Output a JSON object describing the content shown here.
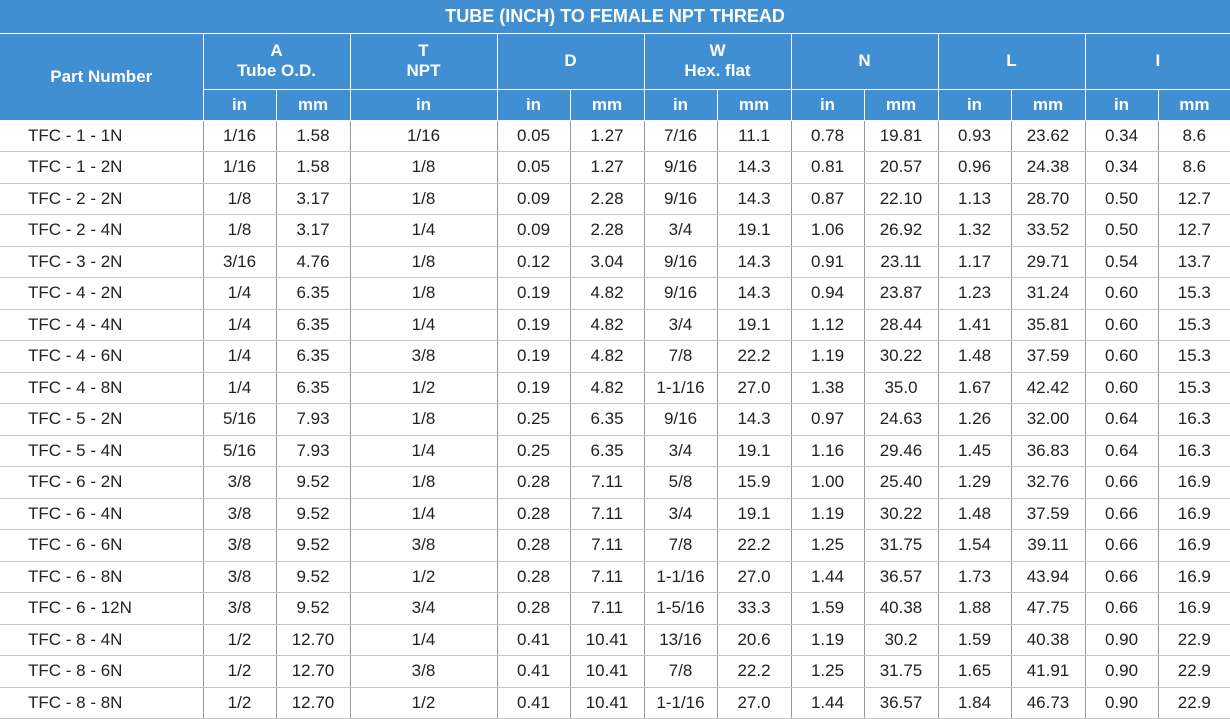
{
  "title": "TUBE (INCH) TO FEMALE NPT THREAD",
  "headers": {
    "part_number": "Part Number",
    "A": {
      "letter": "A",
      "name": "Tube O.D."
    },
    "T": {
      "letter": "T",
      "name": "NPT"
    },
    "D": {
      "letter": "D"
    },
    "W": {
      "letter": "W",
      "name": "Hex. flat"
    },
    "N": {
      "letter": "N"
    },
    "L": {
      "letter": "L"
    },
    "I": {
      "letter": "I"
    }
  },
  "units": {
    "in": "in",
    "mm": "mm"
  },
  "rows": [
    [
      "TFC - 1 - 1N",
      "1/16",
      "1.58",
      "1/16",
      "0.05",
      "1.27",
      "7/16",
      "11.1",
      "0.78",
      "19.81",
      "0.93",
      "23.62",
      "0.34",
      "8.6"
    ],
    [
      "TFC - 1 - 2N",
      "1/16",
      "1.58",
      "1/8",
      "0.05",
      "1.27",
      "9/16",
      "14.3",
      "0.81",
      "20.57",
      "0.96",
      "24.38",
      "0.34",
      "8.6"
    ],
    [
      "TFC - 2 - 2N",
      "1/8",
      "3.17",
      "1/8",
      "0.09",
      "2.28",
      "9/16",
      "14.3",
      "0.87",
      "22.10",
      "1.13",
      "28.70",
      "0.50",
      "12.7"
    ],
    [
      "TFC - 2 - 4N",
      "1/8",
      "3.17",
      "1/4",
      "0.09",
      "2.28",
      "3/4",
      "19.1",
      "1.06",
      "26.92",
      "1.32",
      "33.52",
      "0.50",
      "12.7"
    ],
    [
      "TFC - 3 - 2N",
      "3/16",
      "4.76",
      "1/8",
      "0.12",
      "3.04",
      "9/16",
      "14.3",
      "0.91",
      "23.11",
      "1.17",
      "29.71",
      "0.54",
      "13.7"
    ],
    [
      "TFC - 4 - 2N",
      "1/4",
      "6.35",
      "1/8",
      "0.19",
      "4.82",
      "9/16",
      "14.3",
      "0.94",
      "23.87",
      "1.23",
      "31.24",
      "0.60",
      "15.3"
    ],
    [
      "TFC - 4 - 4N",
      "1/4",
      "6.35",
      "1/4",
      "0.19",
      "4.82",
      "3/4",
      "19.1",
      "1.12",
      "28.44",
      "1.41",
      "35.81",
      "0.60",
      "15.3"
    ],
    [
      "TFC - 4 - 6N",
      "1/4",
      "6.35",
      "3/8",
      "0.19",
      "4.82",
      "7/8",
      "22.2",
      "1.19",
      "30.22",
      "1.48",
      "37.59",
      "0.60",
      "15.3"
    ],
    [
      "TFC - 4 - 8N",
      "1/4",
      "6.35",
      "1/2",
      "0.19",
      "4.82",
      "1-1/16",
      "27.0",
      "1.38",
      "35.0",
      "1.67",
      "42.42",
      "0.60",
      "15.3"
    ],
    [
      "TFC - 5 - 2N",
      "5/16",
      "7.93",
      "1/8",
      "0.25",
      "6.35",
      "9/16",
      "14.3",
      "0.97",
      "24.63",
      "1.26",
      "32.00",
      "0.64",
      "16.3"
    ],
    [
      "TFC - 5 - 4N",
      "5/16",
      "7.93",
      "1/4",
      "0.25",
      "6.35",
      "3/4",
      "19.1",
      "1.16",
      "29.46",
      "1.45",
      "36.83",
      "0.64",
      "16.3"
    ],
    [
      "TFC - 6 - 2N",
      "3/8",
      "9.52",
      "1/8",
      "0.28",
      "7.11",
      "5/8",
      "15.9",
      "1.00",
      "25.40",
      "1.29",
      "32.76",
      "0.66",
      "16.9"
    ],
    [
      "TFC - 6 - 4N",
      "3/8",
      "9.52",
      "1/4",
      "0.28",
      "7.11",
      "3/4",
      "19.1",
      "1.19",
      "30.22",
      "1.48",
      "37.59",
      "0.66",
      "16.9"
    ],
    [
      "TFC - 6 - 6N",
      "3/8",
      "9.52",
      "3/8",
      "0.28",
      "7.11",
      "7/8",
      "22.2",
      "1.25",
      "31.75",
      "1.54",
      "39.11",
      "0.66",
      "16.9"
    ],
    [
      "TFC - 6 - 8N",
      "3/8",
      "9.52",
      "1/2",
      "0.28",
      "7.11",
      "1-1/16",
      "27.0",
      "1.44",
      "36.57",
      "1.73",
      "43.94",
      "0.66",
      "16.9"
    ],
    [
      "TFC - 6 - 12N",
      "3/8",
      "9.52",
      "3/4",
      "0.28",
      "7.11",
      "1-5/16",
      "33.3",
      "1.59",
      "40.38",
      "1.88",
      "47.75",
      "0.66",
      "16.9"
    ],
    [
      "TFC - 8 - 4N",
      "1/2",
      "12.70",
      "1/4",
      "0.41",
      "10.41",
      "13/16",
      "20.6",
      "1.19",
      "30.2",
      "1.59",
      "40.38",
      "0.90",
      "22.9"
    ],
    [
      "TFC - 8 - 6N",
      "1/2",
      "12.70",
      "3/8",
      "0.41",
      "10.41",
      "7/8",
      "22.2",
      "1.25",
      "31.75",
      "1.65",
      "41.91",
      "0.90",
      "22.9"
    ],
    [
      "TFC - 8 - 8N",
      "1/2",
      "12.70",
      "1/2",
      "0.41",
      "10.41",
      "1-1/16",
      "27.0",
      "1.44",
      "36.57",
      "1.84",
      "46.73",
      "0.90",
      "22.9"
    ]
  ],
  "colors": {
    "header_bg": "#3f8fd2",
    "header_text": "#ffffff",
    "body_text": "#222222"
  }
}
